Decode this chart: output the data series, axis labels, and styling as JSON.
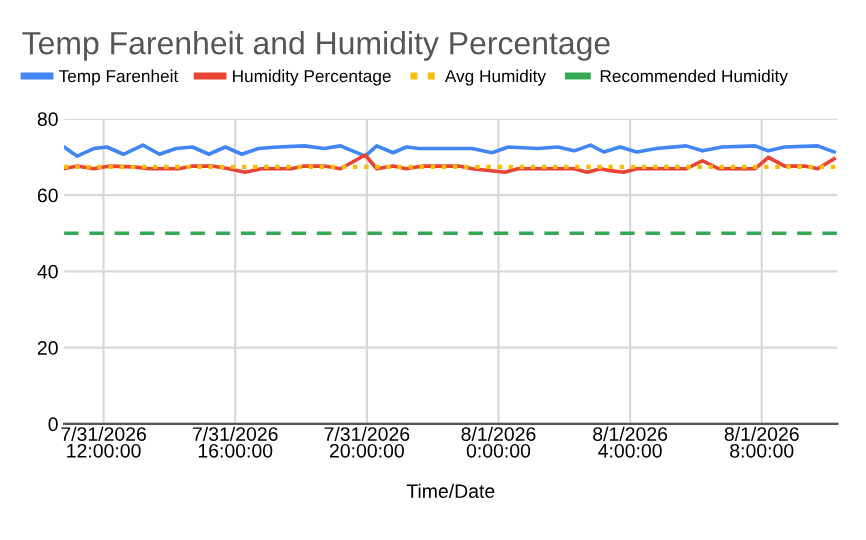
{
  "chart_data": {
    "type": "line",
    "title": "Temp Farenheit and Humidity Percentage",
    "xlabel": "Time/Date",
    "xlim": [
      "2026-07-31T10:48",
      "2026-08-01T10:18"
    ],
    "xticks": [
      {
        "value": "2026-07-31T12:00",
        "label": "7/31/2026\n12:00:00"
      },
      {
        "value": "2026-07-31T16:00",
        "label": "7/31/2026\n16:00:00"
      },
      {
        "value": "2026-07-31T20:00",
        "label": "7/31/2026\n20:00:00"
      },
      {
        "value": "2026-08-01T00:00",
        "label": "8/1/2026\n0:00:00"
      },
      {
        "value": "2026-08-01T04:00",
        "label": "8/1/2026\n4:00:00"
      },
      {
        "value": "2026-08-01T08:00",
        "label": "8/1/2026\n8:00:00"
      }
    ],
    "ylim": [
      0,
      80
    ],
    "yticks": [
      0,
      20,
      40,
      60,
      80
    ],
    "grid": true,
    "legend": "top",
    "series": [
      {
        "name": "Temp Farenheit",
        "color": "#4285f4",
        "line_style": "solid",
        "x": [
          "2026-07-31T10:48",
          "2026-07-31T11:12",
          "2026-07-31T11:42",
          "2026-07-31T12:06",
          "2026-07-31T12:36",
          "2026-07-31T13:12",
          "2026-07-31T13:42",
          "2026-07-31T14:12",
          "2026-07-31T14:42",
          "2026-07-31T15:12",
          "2026-07-31T15:42",
          "2026-07-31T16:12",
          "2026-07-31T16:42",
          "2026-07-31T17:18",
          "2026-07-31T18:06",
          "2026-07-31T18:42",
          "2026-07-31T19:12",
          "2026-07-31T19:57",
          "2026-07-31T20:18",
          "2026-07-31T20:48",
          "2026-07-31T21:12",
          "2026-07-31T21:36",
          "2026-07-31T23:12",
          "2026-07-31T23:48",
          "2026-08-01T00:18",
          "2026-08-01T01:12",
          "2026-08-01T01:48",
          "2026-08-01T02:18",
          "2026-08-01T02:48",
          "2026-08-01T03:12",
          "2026-08-01T03:42",
          "2026-08-01T04:12",
          "2026-08-01T04:48",
          "2026-08-01T05:42",
          "2026-08-01T06:12",
          "2026-08-01T06:48",
          "2026-08-01T07:48",
          "2026-08-01T08:12",
          "2026-08-01T08:42",
          "2026-08-01T09:42",
          "2026-08-01T10:12"
        ],
        "values": [
          72.6,
          70.2,
          72.2,
          72.6,
          70.7,
          73.1,
          70.7,
          72.2,
          72.6,
          70.7,
          72.6,
          70.7,
          72.2,
          72.6,
          72.9,
          72.2,
          72.9,
          70.2,
          72.9,
          71.1,
          72.6,
          72.2,
          72.2,
          71.1,
          72.6,
          72.2,
          72.6,
          71.6,
          73.1,
          71.3,
          72.6,
          71.3,
          72.2,
          72.9,
          71.6,
          72.6,
          72.9,
          71.6,
          72.6,
          72.9,
          71.3
        ]
      },
      {
        "name": "Humidity Percentage",
        "color": "#ea4335",
        "line_style": "solid",
        "x": [
          "2026-07-31T10:48",
          "2026-07-31T11:12",
          "2026-07-31T11:42",
          "2026-07-31T12:12",
          "2026-07-31T12:54",
          "2026-07-31T13:24",
          "2026-07-31T14:18",
          "2026-07-31T14:42",
          "2026-07-31T15:18",
          "2026-07-31T15:48",
          "2026-07-31T16:18",
          "2026-07-31T16:48",
          "2026-07-31T17:42",
          "2026-07-31T18:06",
          "2026-07-31T18:42",
          "2026-07-31T19:12",
          "2026-07-31T19:57",
          "2026-07-31T20:18",
          "2026-07-31T20:48",
          "2026-07-31T21:12",
          "2026-07-31T21:42",
          "2026-07-31T22:48",
          "2026-07-31T23:12",
          "2026-08-01T00:12",
          "2026-08-01T00:36",
          "2026-08-01T02:18",
          "2026-08-01T02:42",
          "2026-08-01T03:06",
          "2026-08-01T03:24",
          "2026-08-01T03:48",
          "2026-08-01T04:12",
          "2026-08-01T05:42",
          "2026-08-01T06:12",
          "2026-08-01T06:42",
          "2026-08-01T07:48",
          "2026-08-01T08:12",
          "2026-08-01T08:42",
          "2026-08-01T09:18",
          "2026-08-01T09:42",
          "2026-08-01T10:12"
        ],
        "values": [
          66.9,
          67.6,
          66.9,
          67.6,
          67.4,
          66.9,
          66.9,
          67.6,
          67.6,
          66.9,
          66.0,
          66.9,
          66.9,
          67.6,
          67.6,
          66.9,
          70.5,
          66.9,
          67.6,
          66.9,
          67.6,
          67.6,
          66.9,
          66.0,
          66.9,
          66.9,
          66.0,
          66.9,
          66.4,
          66.0,
          66.9,
          66.9,
          69.0,
          66.9,
          66.9,
          69.9,
          67.6,
          67.6,
          66.9,
          69.5
        ]
      },
      {
        "name": "Avg Humidity",
        "color": "#fbbc04",
        "line_style": "dotted",
        "x": [
          "2026-07-31T10:48",
          "2026-08-01T10:18"
        ],
        "values": [
          67.4,
          67.4
        ]
      },
      {
        "name": "Recommended Humidity",
        "color": "#34a853",
        "line_style": "dashed",
        "x": [
          "2026-07-31T10:48",
          "2026-08-01T10:18"
        ],
        "values": [
          50,
          50
        ]
      }
    ]
  }
}
